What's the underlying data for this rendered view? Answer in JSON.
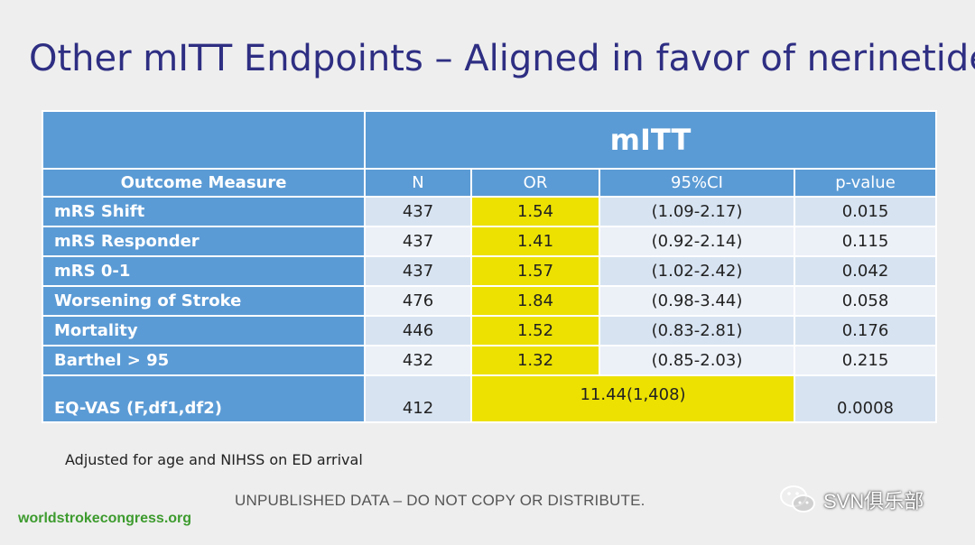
{
  "title": "Other mITT Endpoints – Aligned in favor of nerinetide",
  "table": {
    "group_header": "mITT",
    "columns": [
      "Outcome Measure",
      "N",
      "OR",
      "95%CI",
      "p-value"
    ],
    "rows": [
      {
        "measure": "mRS Shift",
        "n": "437",
        "or": "1.54",
        "ci": "(1.09-2.17)",
        "p": "0.015"
      },
      {
        "measure": "mRS Responder",
        "n": "437",
        "or": "1.41",
        "ci": "(0.92-2.14)",
        "p": "0.115"
      },
      {
        "measure": "mRS 0-1",
        "n": "437",
        "or": "1.57",
        "ci": "(1.02-2.42)",
        "p": "0.042"
      },
      {
        "measure": "Worsening of Stroke",
        "n": "476",
        "or": "1.84",
        "ci": "(0.98-3.44)",
        "p": "0.058"
      },
      {
        "measure": "Mortality",
        "n": "446",
        "or": "1.52",
        "ci": "(0.83-2.81)",
        "p": "0.176"
      },
      {
        "measure": "Barthel > 95",
        "n": "432",
        "or": "1.32",
        "ci": "(0.85-2.03)",
        "p": "0.215"
      }
    ],
    "last_row": {
      "measure": "EQ-VAS (F,df1,df2)",
      "n": "412",
      "merged_value": "11.44(1,408)",
      "p": "0.0008"
    }
  },
  "footnote": "Adjusted for age and NIHSS on ED arrival",
  "disclaimer": "UNPUBLISHED DATA – DO NOT COPY OR DISTRIBUTE.",
  "website": "worldstrokecongress.org",
  "watermark": "SVN俱乐部",
  "colors": {
    "title": "#2e2e83",
    "header_blue": "#5b9bd5",
    "highlight_yellow": "#ece100",
    "row_odd": "#d7e3f1",
    "row_even": "#ecf1f8",
    "website_green": "#3d9b2e"
  },
  "icons": {
    "watermark": "wechat-icon"
  }
}
